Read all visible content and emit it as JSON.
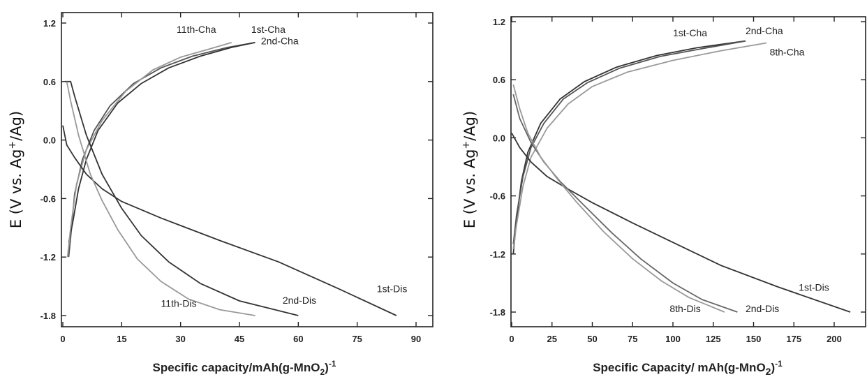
{
  "chart_data": [
    {
      "type": "line",
      "xlabel": "Specific capacity/mAh(g-MnO",
      "xlabel_sub": "2",
      "xlabel_end": ")",
      "xlabel_sup": "-1",
      "ylabel": "E (V vs. Ag",
      "ylabel_sup": "+",
      "ylabel_end": "/Ag)",
      "xlim": [
        0,
        100
      ],
      "ylim": [
        -1.9,
        1.2
      ],
      "xticks": [
        0,
        15,
        30,
        45,
        60,
        75,
        90
      ],
      "yticks": [
        -1.8,
        -1.2,
        -0.6,
        0.0,
        0.6,
        1.2
      ],
      "xtick_labels": [
        "0",
        "15",
        "30",
        "45",
        "60",
        "75",
        "90"
      ],
      "ytick_labels": [
        "-1.8",
        "-1.2",
        "-0.6",
        "0.0",
        "0.6",
        "1.2"
      ],
      "series": [
        {
          "name": "1st-Cha",
          "color": "#555555",
          "points": [
            [
              1.5,
              -1.2
            ],
            [
              2,
              -1.0
            ],
            [
              3,
              -0.55
            ],
            [
              5,
              -0.2
            ],
            [
              8,
              0.1
            ],
            [
              12,
              0.35
            ],
            [
              18,
              0.58
            ],
            [
              25,
              0.74
            ],
            [
              33,
              0.86
            ],
            [
              42,
              0.95
            ],
            [
              49,
              1.0
            ]
          ]
        },
        {
          "name": "2nd-Cha",
          "color": "#333333",
          "points": [
            [
              1.5,
              -1.05
            ],
            [
              2.5,
              -0.85
            ],
            [
              4,
              -0.5
            ],
            [
              6,
              -0.2
            ],
            [
              9,
              0.1
            ],
            [
              14,
              0.38
            ],
            [
              20,
              0.58
            ],
            [
              27,
              0.74
            ],
            [
              35,
              0.86
            ],
            [
              43,
              0.95
            ],
            [
              49,
              1.0
            ]
          ]
        },
        {
          "name": "11th-Cha",
          "color": "#999999",
          "points": [
            [
              1.2,
              -1.2
            ],
            [
              2,
              -0.9
            ],
            [
              3.5,
              -0.45
            ],
            [
              6,
              -0.1
            ],
            [
              10,
              0.2
            ],
            [
              16,
              0.5
            ],
            [
              23,
              0.72
            ],
            [
              30,
              0.85
            ],
            [
              37,
              0.93
            ],
            [
              43,
              1.0
            ]
          ]
        },
        {
          "name": "1st-Dis",
          "color": "#333333",
          "points": [
            [
              0,
              0.15
            ],
            [
              1,
              -0.05
            ],
            [
              3,
              -0.18
            ],
            [
              6,
              -0.35
            ],
            [
              10,
              -0.5
            ],
            [
              15,
              -0.63
            ],
            [
              25,
              -0.8
            ],
            [
              40,
              -1.03
            ],
            [
              55,
              -1.25
            ],
            [
              70,
              -1.52
            ],
            [
              85,
              -1.8
            ]
          ]
        },
        {
          "name": "2nd-Dis",
          "color": "#333333",
          "points": [
            [
              0.5,
              0.6
            ],
            [
              2,
              0.6
            ],
            [
              3,
              0.45
            ],
            [
              6,
              0.05
            ],
            [
              10,
              -0.35
            ],
            [
              15,
              -0.7
            ],
            [
              20,
              -0.98
            ],
            [
              27,
              -1.25
            ],
            [
              35,
              -1.47
            ],
            [
              45,
              -1.65
            ],
            [
              60,
              -1.8
            ]
          ]
        },
        {
          "name": "11th-Dis",
          "color": "#999999",
          "points": [
            [
              1,
              0.6
            ],
            [
              2,
              0.4
            ],
            [
              4,
              0.05
            ],
            [
              7,
              -0.35
            ],
            [
              10,
              -0.62
            ],
            [
              14,
              -0.92
            ],
            [
              19,
              -1.22
            ],
            [
              25,
              -1.45
            ],
            [
              32,
              -1.63
            ],
            [
              40,
              -1.74
            ],
            [
              49,
              -1.8
            ]
          ]
        }
      ],
      "annotations": [
        {
          "text": "11th-Cha",
          "x": 29,
          "y": 1.1
        },
        {
          "text": "1st-Cha",
          "x": 48,
          "y": 1.1
        },
        {
          "text": "2nd-Cha",
          "x": 50.5,
          "y": 0.98
        },
        {
          "text": "1st-Dis",
          "x": 80,
          "y": -1.56
        },
        {
          "text": "2nd-Dis",
          "x": 56,
          "y": -1.68
        },
        {
          "text": "11th-Dis",
          "x": 25,
          "y": -1.71
        }
      ]
    },
    {
      "type": "line",
      "xlabel": "Specific Capacity/ mAh(g-MnO",
      "xlabel_sub": "2",
      "xlabel_end": ")",
      "xlabel_sup": "-1",
      "ylabel": "E (V vs. Ag",
      "ylabel_sup": "+",
      "ylabel_end": "/Ag)",
      "xlim": [
        0,
        215
      ],
      "ylim": [
        -1.9,
        1.2
      ],
      "xticks": [
        0,
        25,
        50,
        75,
        100,
        125,
        150,
        175,
        200
      ],
      "yticks": [
        -1.8,
        -1.2,
        -0.6,
        0.0,
        0.6,
        1.2
      ],
      "xtick_labels": [
        "0",
        "25",
        "50",
        "75",
        "100",
        "125",
        "150",
        "175",
        "200"
      ],
      "ytick_labels": [
        "-1.8",
        "-1.2",
        "-0.6",
        "0.0",
        "0.6",
        "1.2"
      ],
      "series": [
        {
          "name": "1st-Cha",
          "color": "#333333",
          "points": [
            [
              1,
              -1.2
            ],
            [
              3,
              -0.85
            ],
            [
              6,
              -0.45
            ],
            [
              10,
              -0.15
            ],
            [
              18,
              0.15
            ],
            [
              30,
              0.4
            ],
            [
              45,
              0.58
            ],
            [
              65,
              0.73
            ],
            [
              90,
              0.85
            ],
            [
              115,
              0.93
            ],
            [
              145,
              1.0
            ]
          ]
        },
        {
          "name": "2nd-Cha",
          "color": "#555555",
          "points": [
            [
              1,
              -1.1
            ],
            [
              3,
              -0.8
            ],
            [
              7,
              -0.4
            ],
            [
              12,
              -0.1
            ],
            [
              20,
              0.15
            ],
            [
              32,
              0.4
            ],
            [
              47,
              0.57
            ],
            [
              67,
              0.72
            ],
            [
              92,
              0.84
            ],
            [
              118,
              0.92
            ],
            [
              145,
              1.0
            ]
          ]
        },
        {
          "name": "8th-Cha",
          "color": "#999999",
          "points": [
            [
              1,
              -1.15
            ],
            [
              3,
              -0.9
            ],
            [
              7,
              -0.5
            ],
            [
              12,
              -0.2
            ],
            [
              22,
              0.1
            ],
            [
              35,
              0.35
            ],
            [
              50,
              0.53
            ],
            [
              72,
              0.68
            ],
            [
              100,
              0.8
            ],
            [
              130,
              0.9
            ],
            [
              158,
              0.98
            ]
          ]
        },
        {
          "name": "1st-Dis",
          "color": "#333333",
          "points": [
            [
              0,
              0.05
            ],
            [
              5,
              -0.1
            ],
            [
              12,
              -0.25
            ],
            [
              22,
              -0.4
            ],
            [
              35,
              -0.53
            ],
            [
              50,
              -0.67
            ],
            [
              75,
              -0.88
            ],
            [
              100,
              -1.08
            ],
            [
              130,
              -1.32
            ],
            [
              165,
              -1.54
            ],
            [
              210,
              -1.8
            ]
          ]
        },
        {
          "name": "2nd-Dis",
          "color": "#666666",
          "points": [
            [
              1,
              0.45
            ],
            [
              5,
              0.2
            ],
            [
              12,
              -0.05
            ],
            [
              20,
              -0.25
            ],
            [
              30,
              -0.45
            ],
            [
              45,
              -0.7
            ],
            [
              62,
              -0.98
            ],
            [
              80,
              -1.25
            ],
            [
              100,
              -1.5
            ],
            [
              118,
              -1.67
            ],
            [
              140,
              -1.8
            ]
          ]
        },
        {
          "name": "8th-Dis",
          "color": "#999999",
          "points": [
            [
              1,
              0.55
            ],
            [
              5,
              0.3
            ],
            [
              10,
              0.05
            ],
            [
              18,
              -0.2
            ],
            [
              28,
              -0.42
            ],
            [
              40,
              -0.66
            ],
            [
              57,
              -0.97
            ],
            [
              75,
              -1.25
            ],
            [
              93,
              -1.48
            ],
            [
              110,
              -1.65
            ],
            [
              132,
              -1.8
            ]
          ]
        }
      ],
      "annotations": [
        {
          "text": "1st-Cha",
          "x": 100,
          "y": 1.05
        },
        {
          "text": "2nd-Cha",
          "x": 145,
          "y": 1.07
        },
        {
          "text": "8th-Cha",
          "x": 160,
          "y": 0.85
        },
        {
          "text": "1st-Dis",
          "x": 178,
          "y": -1.58
        },
        {
          "text": "2nd-Dis",
          "x": 145,
          "y": -1.8
        },
        {
          "text": "8th-Dis",
          "x": 98,
          "y": -1.8
        }
      ]
    }
  ]
}
